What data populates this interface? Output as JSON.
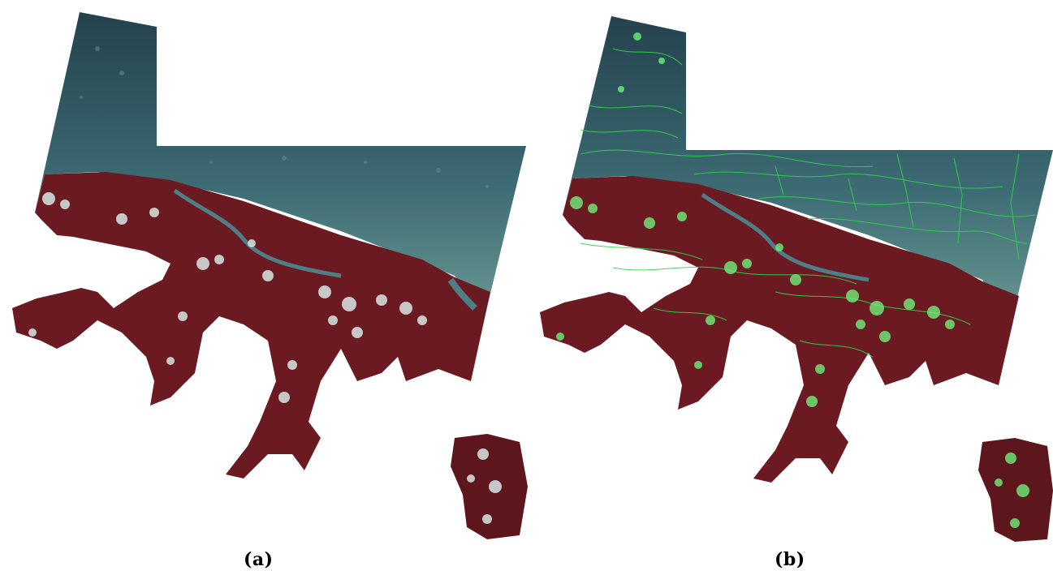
{
  "figure": {
    "panels": [
      {
        "caption": "(a)"
      },
      {
        "caption": "(b)"
      }
    ],
    "colors": {
      "background": "#ffffff",
      "water_deep": "#1f3f4b",
      "water_shallow": "#4f7f86",
      "vegetation": "#6b1a22",
      "vegetation_dark": "#4d1015",
      "cloud": "#d8e6e6",
      "segment_boundary": "#2fd64a",
      "cloud_highlight_b": "#6ef07a"
    }
  }
}
